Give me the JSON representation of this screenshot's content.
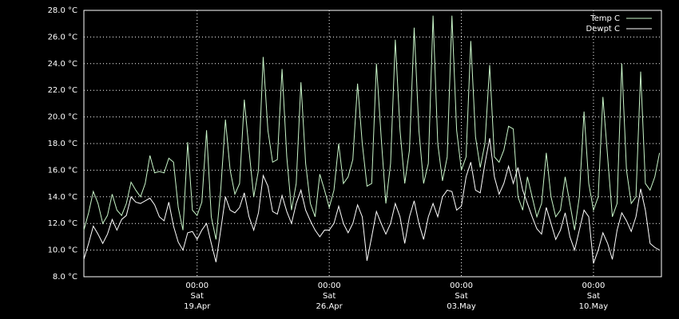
{
  "chart_data": {
    "type": "line",
    "x": [
      0,
      0.25,
      0.5,
      0.75,
      1,
      1.25,
      1.5,
      1.75,
      2,
      2.25,
      2.5,
      2.75,
      3,
      3.25,
      3.5,
      3.75,
      4,
      4.25,
      4.5,
      4.75,
      5,
      5.25,
      5.5,
      5.75,
      6,
      6.25,
      6.5,
      6.75,
      7,
      7.25,
      7.5,
      7.75,
      8,
      8.25,
      8.5,
      8.75,
      9,
      9.25,
      9.5,
      9.75,
      10,
      10.25,
      10.5,
      10.75,
      11,
      11.25,
      11.5,
      11.75,
      12,
      12.25,
      12.5,
      12.75,
      13,
      13.25,
      13.5,
      13.75,
      14,
      14.25,
      14.5,
      14.75,
      15,
      15.25,
      15.5,
      15.75,
      16,
      16.25,
      16.5,
      16.75,
      17,
      17.25,
      17.5,
      17.75,
      18,
      18.25,
      18.5,
      18.75,
      19,
      19.25,
      19.5,
      19.75,
      20,
      20.25,
      20.5,
      20.75,
      21,
      21.25,
      21.5,
      21.75,
      22,
      22.25,
      22.5,
      22.75,
      23,
      23.25,
      23.5,
      23.75,
      24,
      24.25,
      24.5,
      24.75,
      25,
      25.25,
      25.5,
      25.75,
      26,
      26.25,
      26.5,
      26.75,
      27,
      27.25,
      27.5,
      27.75,
      28,
      28.25,
      28.5,
      28.75,
      29,
      29.25,
      29.5,
      29.75,
      30,
      30.25,
      30.5
    ],
    "series": [
      {
        "name": "Temp C",
        "color": "#c8f5c8",
        "values": [
          11.5,
          12.8,
          14.4,
          13.5,
          12.0,
          12.6,
          14.2,
          13.0,
          12.6,
          13.5,
          15.1,
          14.5,
          14.0,
          15.0,
          17.1,
          15.8,
          15.9,
          15.8,
          16.9,
          16.6,
          13.2,
          11.5,
          18.1,
          13.0,
          12.6,
          13.6,
          19.0,
          12.5,
          10.8,
          14.5,
          19.8,
          16.0,
          14.2,
          15.0,
          21.3,
          17.5,
          14.0,
          16.0,
          24.5,
          19.0,
          16.6,
          16.8,
          23.6,
          17.0,
          13.0,
          15.0,
          22.6,
          16.5,
          13.5,
          12.5,
          15.7,
          14.5,
          13.2,
          14.5,
          18.0,
          15.0,
          15.5,
          16.8,
          22.5,
          18.0,
          14.8,
          15.0,
          24.0,
          18.5,
          13.5,
          16.5,
          25.8,
          19.0,
          15.0,
          17.5,
          26.7,
          19.0,
          15.0,
          16.5,
          27.6,
          18.0,
          15.2,
          17.0,
          27.6,
          19.0,
          16.0,
          17.0,
          25.7,
          18.5,
          16.2,
          18.0,
          23.9,
          17.0,
          16.6,
          17.5,
          19.3,
          19.1,
          14.0,
          13.0,
          15.5,
          14.0,
          12.5,
          13.5,
          17.3,
          14.0,
          12.5,
          13.0,
          15.5,
          13.5,
          11.5,
          14.0,
          20.4,
          15.0,
          13.0,
          14.0,
          21.5,
          17.0,
          12.5,
          13.5,
          24.0,
          16.0,
          13.5,
          14.0,
          23.4,
          15.0,
          14.5,
          15.5,
          17.3
        ]
      },
      {
        "name": "Dewpt C",
        "color": "#ffffff",
        "values": [
          9.3,
          10.5,
          11.8,
          11.2,
          10.5,
          11.2,
          12.3,
          11.5,
          12.3,
          12.6,
          14.0,
          13.6,
          13.5,
          13.7,
          13.9,
          13.4,
          12.5,
          12.2,
          13.6,
          11.8,
          10.6,
          10.0,
          11.3,
          11.4,
          10.8,
          11.5,
          12.0,
          10.5,
          9.1,
          11.5,
          14.0,
          13.0,
          12.8,
          13.2,
          14.3,
          12.5,
          11.5,
          12.8,
          15.6,
          14.8,
          12.9,
          12.7,
          14.1,
          12.9,
          12.0,
          13.5,
          14.5,
          13.0,
          12.2,
          11.5,
          11.0,
          11.5,
          11.5,
          12.0,
          13.3,
          12.0,
          11.3,
          12.0,
          13.4,
          12.5,
          9.2,
          11.0,
          12.9,
          12.0,
          11.2,
          12.0,
          13.5,
          12.5,
          10.5,
          12.5,
          13.7,
          12.0,
          10.8,
          12.5,
          13.5,
          12.5,
          14.0,
          14.5,
          14.4,
          13.0,
          13.3,
          15.5,
          16.6,
          14.5,
          14.3,
          16.5,
          18.4,
          15.5,
          14.2,
          15.0,
          16.3,
          15.0,
          16.2,
          14.5,
          13.5,
          12.5,
          11.6,
          11.2,
          13.2,
          12.0,
          10.8,
          11.5,
          12.8,
          11.0,
          10.0,
          11.5,
          13.0,
          12.5,
          9.0,
          10.0,
          11.3,
          10.5,
          9.3,
          11.5,
          12.8,
          12.2,
          11.4,
          12.5,
          14.6,
          13.0,
          10.5,
          10.2,
          10.0
        ]
      }
    ],
    "xlim": [
      0,
      30.6
    ],
    "xticks": [
      {
        "value": 6,
        "label": "00:00\nSat\n19.Apr"
      },
      {
        "value": 13,
        "label": "00:00\nSat\n26.Apr"
      },
      {
        "value": 20,
        "label": "00:00\nSat\n03.May"
      },
      {
        "value": 27,
        "label": "00:00\nSat\n10.May"
      }
    ],
    "ylim": [
      8,
      28
    ],
    "yticks": [
      {
        "value": 8,
        "label": "8.0 °C"
      },
      {
        "value": 10,
        "label": "10.0 °C"
      },
      {
        "value": 12,
        "label": "12.0 °C"
      },
      {
        "value": 14,
        "label": "14.0 °C"
      },
      {
        "value": 16,
        "label": "16.0 °C"
      },
      {
        "value": 18,
        "label": "18.0 °C"
      },
      {
        "value": 20,
        "label": "20.0 °C"
      },
      {
        "value": 22,
        "label": "22.0 °C"
      },
      {
        "value": 24,
        "label": "24.0 °C"
      },
      {
        "value": 26,
        "label": "26.0 °C"
      },
      {
        "value": 28,
        "label": "28.0 °C"
      }
    ],
    "grid": true,
    "legend": "upper right"
  }
}
